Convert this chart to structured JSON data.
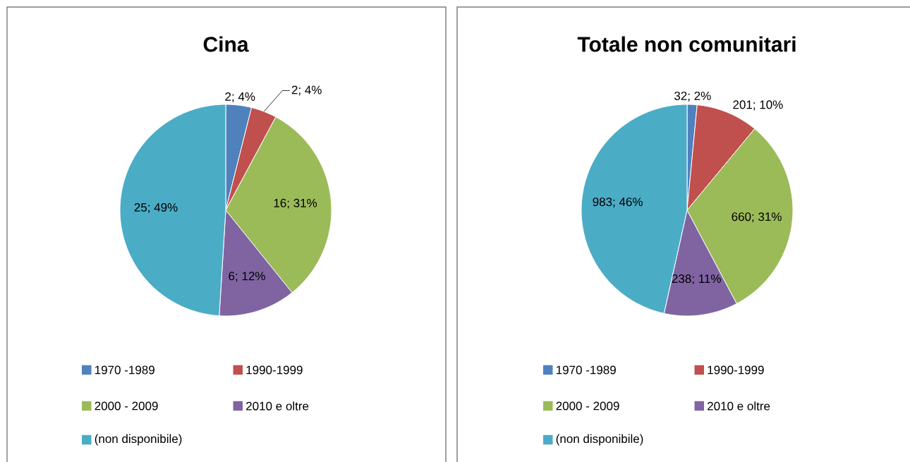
{
  "chart_data": [
    {
      "type": "pie",
      "title": "Cina",
      "categories": [
        "1970 -1989",
        "1990-1999",
        "2000 - 2009",
        "2010 e oltre",
        "(non disponibile)"
      ],
      "values": [
        2,
        2,
        16,
        6,
        25
      ],
      "colors": [
        "#4f81bd",
        "#c0504d",
        "#9bbb59",
        "#8064a2",
        "#4bacc6"
      ],
      "value_labels": [
        "2; 4%",
        "2; 4%",
        "16; 31%",
        "6; 12%",
        "25; 49%"
      ],
      "legend": "bottom"
    },
    {
      "type": "pie",
      "title": "Totale non comunitari",
      "categories": [
        "1970 -1989",
        "1990-1999",
        "2000 - 2009",
        "2010 e oltre",
        "(non disponibile)"
      ],
      "values": [
        32,
        201,
        660,
        238,
        983
      ],
      "colors": [
        "#4f81bd",
        "#c0504d",
        "#9bbb59",
        "#8064a2",
        "#4bacc6"
      ],
      "value_labels": [
        "32; 2%",
        "201; 10%",
        "660; 31%",
        "238; 11%",
        "983; 46%"
      ],
      "legend": "bottom"
    }
  ]
}
